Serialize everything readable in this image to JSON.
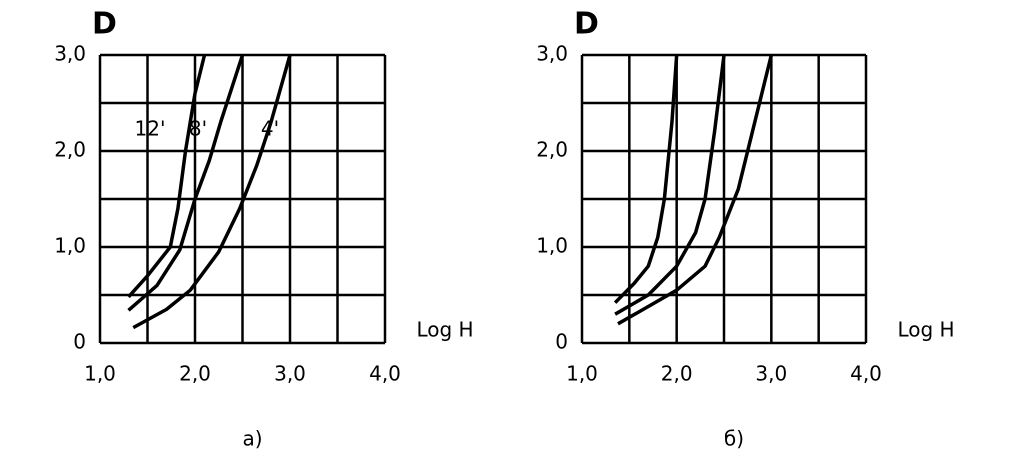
{
  "chart_data": [
    {
      "type": "line",
      "x_label": "Log H",
      "y_label": "D",
      "caption": "а)",
      "xlim": [
        1,
        4
      ],
      "ylim": [
        0,
        3
      ],
      "xticks": [
        {
          "value": 1,
          "label": "1,0"
        },
        {
          "value": 2,
          "label": "2,0"
        },
        {
          "value": 3,
          "label": "3,0"
        },
        {
          "value": 4,
          "label": "4,0"
        }
      ],
      "yticks": [
        0,
        {
          "value": 1,
          "label": "1,0"
        },
        {
          "value": 2,
          "label": "2,0"
        },
        {
          "value": 3,
          "label": "3,0"
        }
      ],
      "minor_xticks": [
        1.5,
        2.5,
        3.5
      ],
      "minor_yticks": [
        0.5,
        1.5,
        2.5
      ],
      "grid": true,
      "series": [
        {
          "name": "12'",
          "color": "#000000",
          "x": [
            1.3,
            1.5,
            1.74,
            1.82,
            1.9,
            2.0,
            2.1
          ],
          "values": [
            0.48,
            0.7,
            1.0,
            1.4,
            2.0,
            2.6,
            3.0
          ]
        },
        {
          "name": "8'",
          "color": "#000000",
          "x": [
            1.3,
            1.6,
            1.84,
            2.0,
            2.15,
            2.27,
            2.5
          ],
          "values": [
            0.34,
            0.6,
            0.97,
            1.5,
            1.9,
            2.3,
            3.0
          ]
        },
        {
          "name": "4'",
          "color": "#000000",
          "x": [
            1.35,
            1.7,
            1.95,
            2.25,
            2.47,
            2.65,
            2.8,
            3.0
          ],
          "values": [
            0.16,
            0.35,
            0.55,
            0.95,
            1.4,
            1.85,
            2.3,
            3.0
          ]
        }
      ]
    },
    {
      "type": "line",
      "x_label": "Log H",
      "y_label": "D",
      "caption": "б)",
      "xlim": [
        1,
        4
      ],
      "ylim": [
        0,
        3
      ],
      "xticks": [
        {
          "value": 1,
          "label": "1,0"
        },
        {
          "value": 2,
          "label": "2,0"
        },
        {
          "value": 3,
          "label": "3,0"
        },
        {
          "value": 4,
          "label": "4,0"
        }
      ],
      "yticks": [
        0,
        {
          "value": 1,
          "label": "1,0"
        },
        {
          "value": 2,
          "label": "2,0"
        },
        {
          "value": 3,
          "label": "3,0"
        }
      ],
      "minor_xticks": [
        1.5,
        2.5,
        3.5
      ],
      "minor_yticks": [
        0.5,
        1.5,
        2.5
      ],
      "grid": true,
      "series": [
        {
          "color": "#000000",
          "x": [
            1.35,
            1.55,
            1.7,
            1.8,
            1.87,
            1.95,
            2.0
          ],
          "values": [
            0.42,
            0.62,
            0.8,
            1.1,
            1.5,
            2.3,
            3.0
          ]
        },
        {
          "color": "#000000",
          "x": [
            1.35,
            1.7,
            2.0,
            2.2,
            2.3,
            2.4,
            2.5
          ],
          "values": [
            0.3,
            0.5,
            0.8,
            1.15,
            1.5,
            2.2,
            3.0
          ]
        },
        {
          "color": "#000000",
          "x": [
            1.38,
            1.7,
            2.0,
            2.3,
            2.45,
            2.65,
            2.8,
            3.0
          ],
          "values": [
            0.2,
            0.38,
            0.55,
            0.8,
            1.1,
            1.6,
            2.2,
            3.0
          ]
        }
      ]
    }
  ]
}
